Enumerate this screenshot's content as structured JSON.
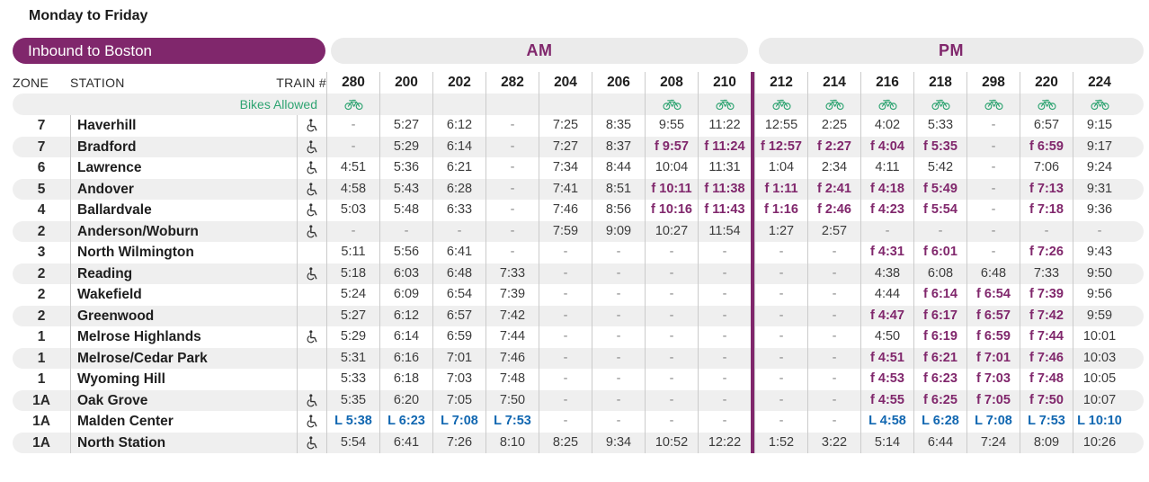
{
  "page": {
    "title": "Monday to Friday",
    "direction": "Inbound to Boston",
    "am_label": "AM",
    "pm_label": "PM",
    "zone_header": "ZONE",
    "station_header": "STATION",
    "train_header": "TRAIN #",
    "bikes_label": "Bikes Allowed"
  },
  "colors": {
    "accent_purple": "#80276C",
    "flag_stop_purple": "#80276C",
    "leaves_blue": "#1167B1",
    "bikes_green": "#2FA472",
    "stripe_gray": "#EFEFEF",
    "pill_gray": "#EBEBEB"
  },
  "legend_icons": {
    "bike": "bike-icon",
    "accessible": "wheelchair-accessible-icon"
  },
  "trains": [
    {
      "id": "280",
      "period": "AM",
      "bikes": true
    },
    {
      "id": "200",
      "period": "AM",
      "bikes": false
    },
    {
      "id": "202",
      "period": "AM",
      "bikes": false
    },
    {
      "id": "282",
      "period": "AM",
      "bikes": false
    },
    {
      "id": "204",
      "period": "AM",
      "bikes": false
    },
    {
      "id": "206",
      "period": "AM",
      "bikes": false
    },
    {
      "id": "208",
      "period": "AM",
      "bikes": true
    },
    {
      "id": "210",
      "period": "AM",
      "bikes": true
    },
    {
      "id": "212",
      "period": "PM",
      "bikes": true
    },
    {
      "id": "214",
      "period": "PM",
      "bikes": true
    },
    {
      "id": "216",
      "period": "PM",
      "bikes": true
    },
    {
      "id": "218",
      "period": "PM",
      "bikes": true
    },
    {
      "id": "298",
      "period": "PM",
      "bikes": true
    },
    {
      "id": "220",
      "period": "PM",
      "bikes": true
    },
    {
      "id": "224",
      "period": "PM",
      "bikes": true
    }
  ],
  "rows": [
    {
      "zone": "7",
      "station": "Haverhill",
      "accessible": true,
      "times": [
        "-",
        "5:27",
        "6:12",
        "-",
        "7:25",
        "8:35",
        "9:55",
        "11:22",
        "12:55",
        "2:25",
        "4:02",
        "5:33",
        "-",
        "6:57",
        "9:15"
      ]
    },
    {
      "zone": "7",
      "station": "Bradford",
      "accessible": true,
      "times": [
        "-",
        "5:29",
        "6:14",
        "-",
        "7:27",
        "8:37",
        "f 9:57",
        "f 11:24",
        "f 12:57",
        "f 2:27",
        "f 4:04",
        "f 5:35",
        "-",
        "f 6:59",
        "9:17"
      ]
    },
    {
      "zone": "6",
      "station": "Lawrence",
      "accessible": true,
      "times": [
        "4:51",
        "5:36",
        "6:21",
        "-",
        "7:34",
        "8:44",
        "10:04",
        "11:31",
        "1:04",
        "2:34",
        "4:11",
        "5:42",
        "-",
        "7:06",
        "9:24"
      ]
    },
    {
      "zone": "5",
      "station": "Andover",
      "accessible": true,
      "times": [
        "4:58",
        "5:43",
        "6:28",
        "-",
        "7:41",
        "8:51",
        "f 10:11",
        "f 11:38",
        "f 1:11",
        "f 2:41",
        "f 4:18",
        "f 5:49",
        "-",
        "f 7:13",
        "9:31"
      ]
    },
    {
      "zone": "4",
      "station": "Ballardvale",
      "accessible": true,
      "times": [
        "5:03",
        "5:48",
        "6:33",
        "-",
        "7:46",
        "8:56",
        "f 10:16",
        "f 11:43",
        "f 1:16",
        "f 2:46",
        "f 4:23",
        "f 5:54",
        "-",
        "f 7:18",
        "9:36"
      ]
    },
    {
      "zone": "2",
      "station": "Anderson/Woburn",
      "accessible": true,
      "times": [
        "-",
        "-",
        "-",
        "-",
        "7:59",
        "9:09",
        "10:27",
        "11:54",
        "1:27",
        "2:57",
        "-",
        "-",
        "-",
        "-",
        "-"
      ]
    },
    {
      "zone": "3",
      "station": "North Wilmington",
      "accessible": false,
      "times": [
        "5:11",
        "5:56",
        "6:41",
        "-",
        "-",
        "-",
        "-",
        "-",
        "-",
        "-",
        "f 4:31",
        "f 6:01",
        "-",
        "f 7:26",
        "9:43"
      ]
    },
    {
      "zone": "2",
      "station": "Reading",
      "accessible": true,
      "times": [
        "5:18",
        "6:03",
        "6:48",
        "7:33",
        "-",
        "-",
        "-",
        "-",
        "-",
        "-",
        "4:38",
        "6:08",
        "6:48",
        "7:33",
        "9:50"
      ]
    },
    {
      "zone": "2",
      "station": "Wakefield",
      "accessible": false,
      "times": [
        "5:24",
        "6:09",
        "6:54",
        "7:39",
        "-",
        "-",
        "-",
        "-",
        "-",
        "-",
        "4:44",
        "f 6:14",
        "f 6:54",
        "f 7:39",
        "9:56"
      ]
    },
    {
      "zone": "2",
      "station": "Greenwood",
      "accessible": false,
      "times": [
        "5:27",
        "6:12",
        "6:57",
        "7:42",
        "-",
        "-",
        "-",
        "-",
        "-",
        "-",
        "f 4:47",
        "f 6:17",
        "f 6:57",
        "f 7:42",
        "9:59"
      ]
    },
    {
      "zone": "1",
      "station": "Melrose Highlands",
      "accessible": true,
      "times": [
        "5:29",
        "6:14",
        "6:59",
        "7:44",
        "-",
        "-",
        "-",
        "-",
        "-",
        "-",
        "4:50",
        "f 6:19",
        "f 6:59",
        "f 7:44",
        "10:01"
      ]
    },
    {
      "zone": "1",
      "station": "Melrose/Cedar Park",
      "accessible": false,
      "times": [
        "5:31",
        "6:16",
        "7:01",
        "7:46",
        "-",
        "-",
        "-",
        "-",
        "-",
        "-",
        "f 4:51",
        "f 6:21",
        "f 7:01",
        "f 7:46",
        "10:03"
      ]
    },
    {
      "zone": "1",
      "station": "Wyoming Hill",
      "accessible": false,
      "times": [
        "5:33",
        "6:18",
        "7:03",
        "7:48",
        "-",
        "-",
        "-",
        "-",
        "-",
        "-",
        "f 4:53",
        "f 6:23",
        "f 7:03",
        "f 7:48",
        "10:05"
      ]
    },
    {
      "zone": "1A",
      "station": "Oak Grove",
      "accessible": true,
      "times": [
        "5:35",
        "6:20",
        "7:05",
        "7:50",
        "-",
        "-",
        "-",
        "-",
        "-",
        "-",
        "f 4:55",
        "f 6:25",
        "f 7:05",
        "f 7:50",
        "10:07"
      ]
    },
    {
      "zone": "1A",
      "station": "Malden Center",
      "accessible": true,
      "times": [
        "L 5:38",
        "L 6:23",
        "L 7:08",
        "L 7:53",
        "-",
        "-",
        "-",
        "-",
        "-",
        "-",
        "L 4:58",
        "L 6:28",
        "L 7:08",
        "L 7:53",
        "L 10:10"
      ]
    },
    {
      "zone": "1A",
      "station": "North Station",
      "accessible": true,
      "times": [
        "5:54",
        "6:41",
        "7:26",
        "8:10",
        "8:25",
        "9:34",
        "10:52",
        "12:22",
        "1:52",
        "3:22",
        "5:14",
        "6:44",
        "7:24",
        "8:09",
        "10:26"
      ]
    }
  ]
}
